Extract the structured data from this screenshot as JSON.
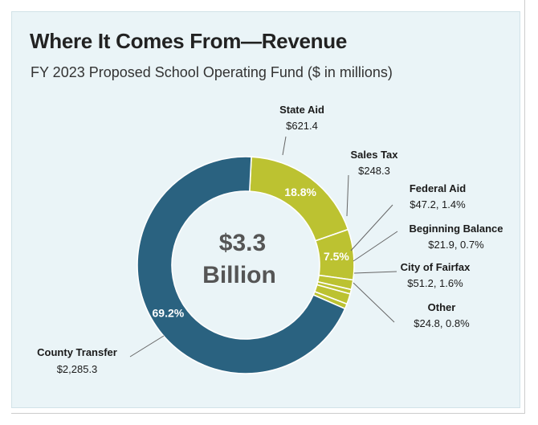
{
  "title": "Where It Comes From—Revenue",
  "subtitle": "FY 2023 Proposed School Operating Fund ($ in millions)",
  "chart_data": {
    "type": "pie",
    "style": "donut",
    "center_label": [
      "$3.3",
      "Billion"
    ],
    "slices": [
      {
        "name": "County Transfer",
        "value": 2285.3,
        "percent": 69.2,
        "value_text": "$2,285.3",
        "pct_label": "69.2%",
        "color": "#2a6280"
      },
      {
        "name": "State Aid",
        "value": 621.4,
        "percent": 18.8,
        "value_text": "$621.4",
        "pct_label": "18.8%",
        "color": "#bcc231"
      },
      {
        "name": "Sales Tax",
        "value": 248.3,
        "percent": 7.5,
        "value_text": "$248.3",
        "pct_label": "7.5%",
        "color": "#bcc231"
      },
      {
        "name": "Federal Aid",
        "value": 47.2,
        "percent": 1.4,
        "value_text": "$47.2, 1.4%",
        "pct_label": "",
        "color": "#bcc231"
      },
      {
        "name": "Beginning Balance",
        "value": 21.9,
        "percent": 0.7,
        "value_text": "$21.9, 0.7%",
        "pct_label": "",
        "color": "#bcc231"
      },
      {
        "name": "City of Fairfax",
        "value": 51.2,
        "percent": 1.6,
        "value_text": "$51.2, 1.6%",
        "pct_label": "",
        "color": "#bcc231"
      },
      {
        "name": "Other",
        "value": 24.8,
        "percent": 0.8,
        "value_text": "$24.8, 0.8%",
        "pct_label": "",
        "color": "#bcc231"
      }
    ]
  }
}
